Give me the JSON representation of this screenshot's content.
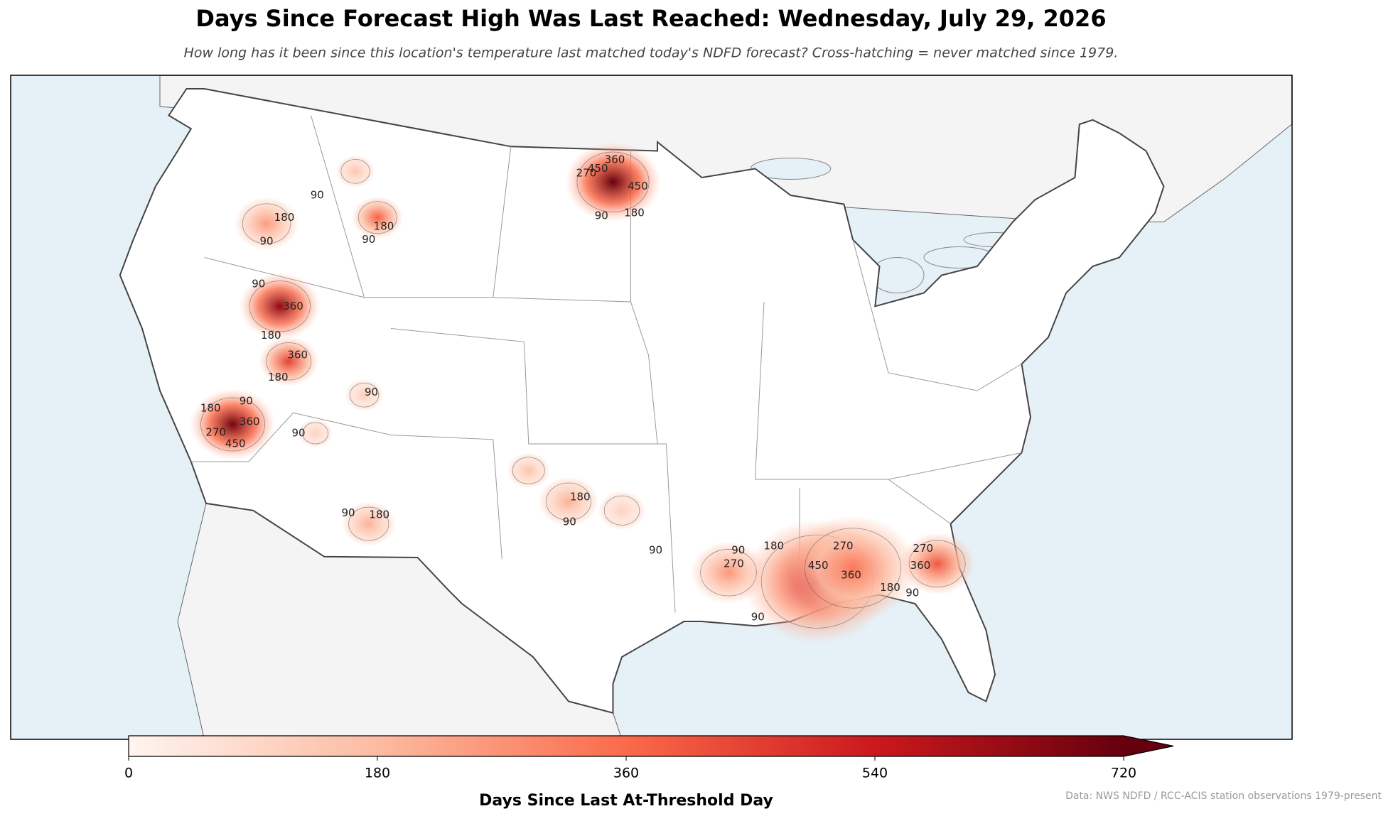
{
  "chart_data": {
    "type": "map",
    "title": "Days Since Forecast High Was Last Reached: Wednesday, July 29, 2026",
    "subtitle": "How long has it been since this location's temperature last matched today's NDFD forecast? Cross-hatching = never matched since 1979.",
    "hotspot_values": [
      720,
      650,
      700,
      450,
      380,
      250,
      150,
      480,
      330,
      400,
      260,
      150,
      200,
      200,
      120,
      110,
      110
    ],
    "contour_labels": [
      90,
      180,
      90,
      90,
      180,
      270,
      450,
      360,
      450,
      90,
      180,
      90,
      360,
      180,
      360,
      180,
      90,
      90,
      180,
      270,
      360,
      450,
      90,
      90,
      180,
      180,
      90,
      90,
      90,
      180,
      270,
      270,
      450,
      360,
      180,
      90,
      90,
      270,
      360
    ],
    "colorbar": {
      "label": "Days Since Last At-Threshold Day",
      "lim": [
        0,
        720
      ],
      "ticks": [
        0,
        180,
        360,
        540,
        720
      ],
      "colors": [
        "#fff5f0",
        "#fcbba1",
        "#fb6a4a",
        "#cb181d",
        "#67000d"
      ]
    },
    "source": "Data: NWS NDFD / RCC-ACIS station observations 1979-present"
  }
}
